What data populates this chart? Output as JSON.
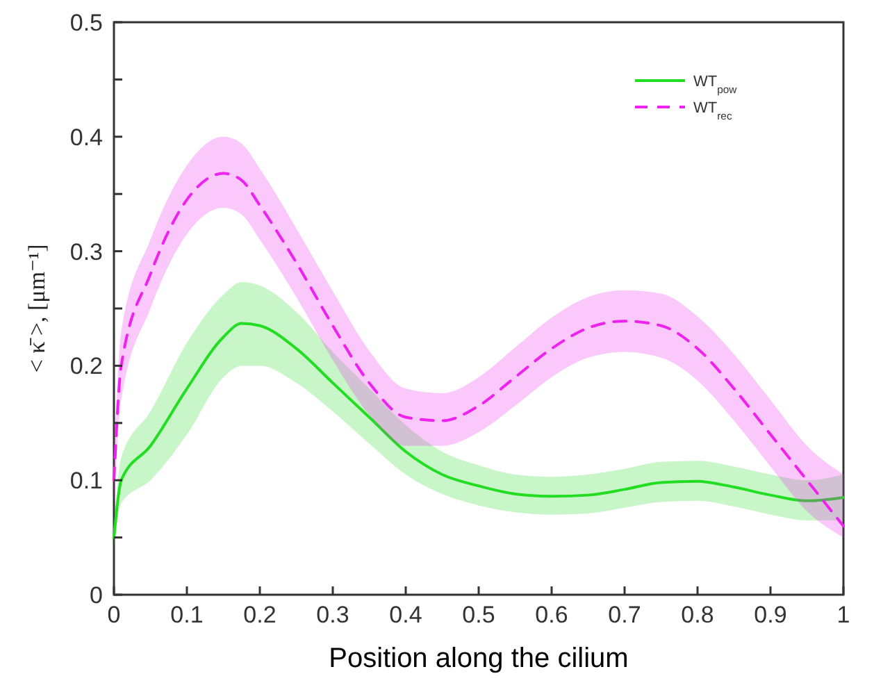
{
  "chart_data": {
    "type": "line",
    "xlabel": "Position along the cilium",
    "ylabel": "< κ̄ >, [μm⁻¹]",
    "xlim": [
      0,
      1
    ],
    "ylim": [
      0,
      0.5
    ],
    "xticks": [
      0,
      0.1,
      0.2,
      0.3,
      0.4,
      0.5,
      0.6,
      0.7,
      0.8,
      0.9,
      1
    ],
    "yticks": [
      0,
      {
        "value": 0.05,
        "label": null
      },
      0.1,
      {
        "value": 0.15,
        "label": null
      },
      0.2,
      {
        "value": 0.25,
        "label": null
      },
      0.3,
      {
        "value": 0.35,
        "label": null
      },
      0.4,
      {
        "value": 0.45,
        "label": null
      },
      0.5
    ],
    "x": [
      0,
      0.01,
      0.05,
      0.1,
      0.15,
      0.175,
      0.2,
      0.25,
      0.3,
      0.35,
      0.4,
      0.45,
      0.5,
      0.55,
      0.6,
      0.65,
      0.7,
      0.75,
      0.8,
      0.85,
      0.9,
      0.95,
      1
    ],
    "series": [
      {
        "name": "WT$_{pow}$",
        "color": "#22dd22",
        "line_style": "solid",
        "values": [
          0.05,
          0.1,
          0.13,
          0.18,
          0.225,
          0.237,
          0.235,
          0.215,
          0.185,
          0.155,
          0.125,
          0.105,
          0.095,
          0.088,
          0.086,
          0.087,
          0.092,
          0.098,
          0.099,
          0.094,
          0.087,
          0.082,
          0.085
        ],
        "lower": [
          0.04,
          0.08,
          0.1,
          0.14,
          0.19,
          0.2,
          0.2,
          0.185,
          0.16,
          0.132,
          0.105,
          0.088,
          0.078,
          0.072,
          0.07,
          0.071,
          0.076,
          0.081,
          0.082,
          0.077,
          0.07,
          0.065,
          0.065
        ],
        "upper": [
          0.06,
          0.12,
          0.16,
          0.22,
          0.262,
          0.273,
          0.27,
          0.247,
          0.212,
          0.18,
          0.148,
          0.125,
          0.113,
          0.105,
          0.103,
          0.105,
          0.11,
          0.116,
          0.117,
          0.112,
          0.105,
          0.1,
          0.105
        ]
      },
      {
        "name": "WT$_{rec}$",
        "color": "#ee22ee",
        "line_style": "dashed",
        "values": [
          0.1,
          0.2,
          0.28,
          0.345,
          0.368,
          0.362,
          0.34,
          0.29,
          0.235,
          0.185,
          0.155,
          0.152,
          0.165,
          0.19,
          0.215,
          0.233,
          0.239,
          0.235,
          0.215,
          0.18,
          0.14,
          0.1,
          0.06
        ],
        "lower": [
          0.08,
          0.17,
          0.25,
          0.315,
          0.338,
          0.332,
          0.31,
          0.26,
          0.205,
          0.157,
          0.13,
          0.13,
          0.142,
          0.165,
          0.19,
          0.207,
          0.212,
          0.207,
          0.187,
          0.152,
          0.112,
          0.073,
          0.05
        ],
        "upper": [
          0.12,
          0.23,
          0.31,
          0.375,
          0.4,
          0.394,
          0.372,
          0.32,
          0.265,
          0.213,
          0.18,
          0.176,
          0.19,
          0.216,
          0.242,
          0.26,
          0.266,
          0.263,
          0.243,
          0.21,
          0.17,
          0.13,
          0.105
        ]
      }
    ],
    "legend": "top right",
    "grid": false
  }
}
